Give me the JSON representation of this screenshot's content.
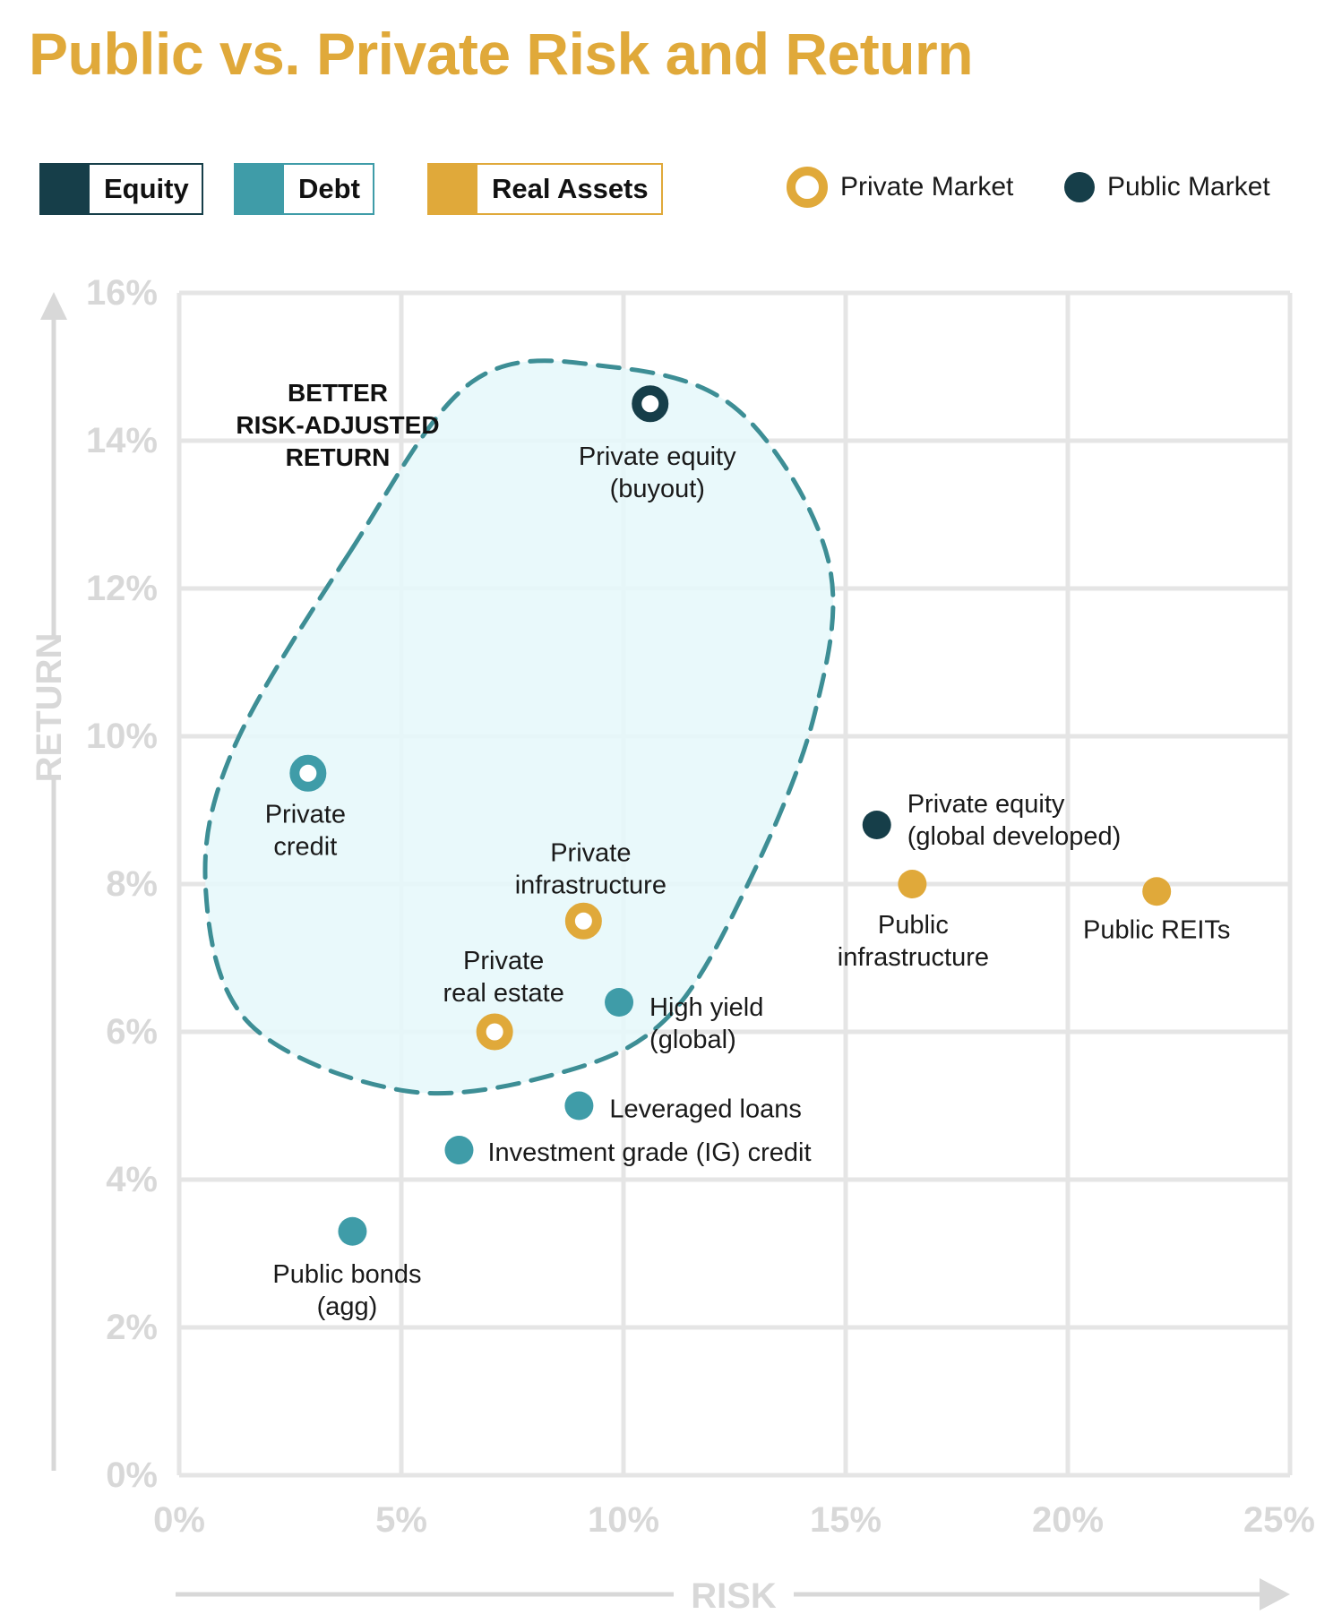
{
  "title": "Public vs. Private Risk and Return",
  "colors": {
    "title": "#E0A93A",
    "equity": "#163E49",
    "debt": "#3F9CA8",
    "real_assets": "#E0A93A",
    "grid": "#E5E5E5",
    "axis_text": "#D8D8D8",
    "region_fill": "#E6F8FB",
    "region_stroke": "#3D8E95"
  },
  "legend": {
    "categories": [
      {
        "label": "Equity",
        "color": "#163E49"
      },
      {
        "label": "Debt",
        "color": "#3F9CA8"
      },
      {
        "label": "Real Assets",
        "color": "#E0A93A"
      }
    ],
    "markers": {
      "private": {
        "label": "Private Market",
        "icon": "ring-marker-icon"
      },
      "public": {
        "label": "Public Market",
        "icon": "dot-marker-icon"
      }
    }
  },
  "chart_data": {
    "type": "scatter",
    "title": "Public vs. Private Risk and Return",
    "xlabel": "RISK",
    "ylabel": "RETURN",
    "xlim": [
      0,
      25
    ],
    "ylim": [
      0,
      16
    ],
    "xticks": [
      0,
      5,
      10,
      15,
      20,
      25
    ],
    "yticks": [
      0,
      2,
      4,
      6,
      8,
      10,
      12,
      14,
      16
    ],
    "xtick_labels": [
      "0%",
      "5%",
      "10%",
      "15%",
      "20%",
      "25%"
    ],
    "ytick_labels": [
      "0%",
      "2%",
      "4%",
      "6%",
      "8%",
      "10%",
      "12%",
      "14%",
      "16%"
    ],
    "grid": true,
    "region": {
      "label_lines": [
        "BETTER",
        "RISK-ADJUSTED",
        "RETURN"
      ],
      "style": "dashed",
      "encloses": [
        "Private equity (buyout)",
        "Private credit",
        "Private infrastructure",
        "Private real estate"
      ]
    },
    "points": [
      {
        "name": "Private equity (buyout)",
        "label_lines": [
          "Private equity",
          "(buyout)"
        ],
        "x": 10.6,
        "y": 14.5,
        "category": "Equity",
        "market": "Private"
      },
      {
        "name": "Private credit",
        "label_lines": [
          "Private",
          "credit"
        ],
        "x": 2.9,
        "y": 9.5,
        "category": "Debt",
        "market": "Private"
      },
      {
        "name": "Private infrastructure",
        "label_lines": [
          "Private",
          "infrastructure"
        ],
        "x": 9.1,
        "y": 7.5,
        "category": "Real Assets",
        "market": "Private"
      },
      {
        "name": "Private real estate",
        "label_lines": [
          "Private",
          "real estate"
        ],
        "x": 7.1,
        "y": 6.0,
        "category": "Real Assets",
        "market": "Private"
      },
      {
        "name": "Private equity (global developed)",
        "label_lines": [
          "Private equity",
          "(global developed)"
        ],
        "x": 15.7,
        "y": 8.8,
        "category": "Equity",
        "market": "Public"
      },
      {
        "name": "Public infrastructure",
        "label_lines": [
          "Public",
          "infrastructure"
        ],
        "x": 16.5,
        "y": 8.0,
        "category": "Real Assets",
        "market": "Public"
      },
      {
        "name": "Public REITs",
        "label_lines": [
          "Public REITs"
        ],
        "x": 22.0,
        "y": 7.9,
        "category": "Real Assets",
        "market": "Public"
      },
      {
        "name": "High yield (global)",
        "label_lines": [
          "High yield",
          "(global)"
        ],
        "x": 9.9,
        "y": 6.4,
        "category": "Debt",
        "market": "Public"
      },
      {
        "name": "Leveraged loans",
        "label_lines": [
          "Leveraged loans"
        ],
        "x": 9.0,
        "y": 5.0,
        "category": "Debt",
        "market": "Public"
      },
      {
        "name": "Investment grade (IG) credit",
        "label_lines": [
          "Investment grade (IG) credit"
        ],
        "x": 6.3,
        "y": 4.4,
        "category": "Debt",
        "market": "Public"
      },
      {
        "name": "Public bonds (agg)",
        "label_lines": [
          "Public bonds",
          "(agg)"
        ],
        "x": 3.9,
        "y": 3.3,
        "category": "Debt",
        "market": "Public"
      }
    ]
  }
}
